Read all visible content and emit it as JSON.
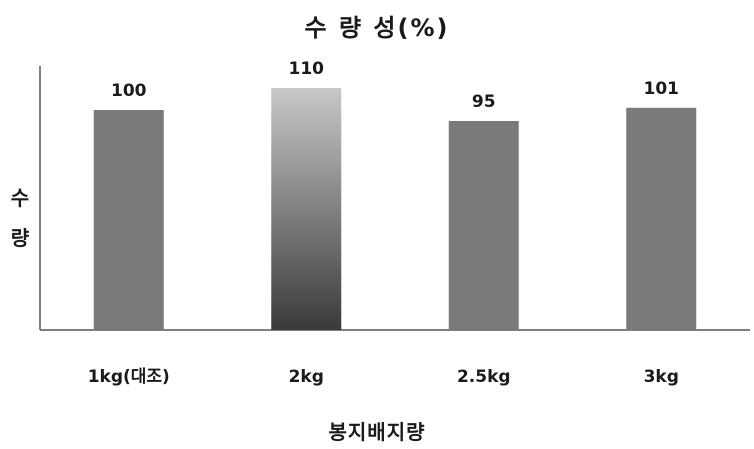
{
  "chart_data": {
    "type": "bar",
    "title": "수 량 성(%)",
    "xlabel": "봉지배지량",
    "ylabel": "수량",
    "categories": [
      "1kg(대조)",
      "2kg",
      "2.5kg",
      "3kg"
    ],
    "values": [
      100,
      110,
      95,
      101
    ],
    "ylim": [
      0,
      120
    ],
    "grid": false,
    "legend": "none",
    "colors": {
      "bar": "#7a7a7a",
      "highlight_top": "#c8c8c8",
      "highlight_bottom": "#3a3a3a",
      "axis": "#555555"
    },
    "highlight_index": 1
  }
}
